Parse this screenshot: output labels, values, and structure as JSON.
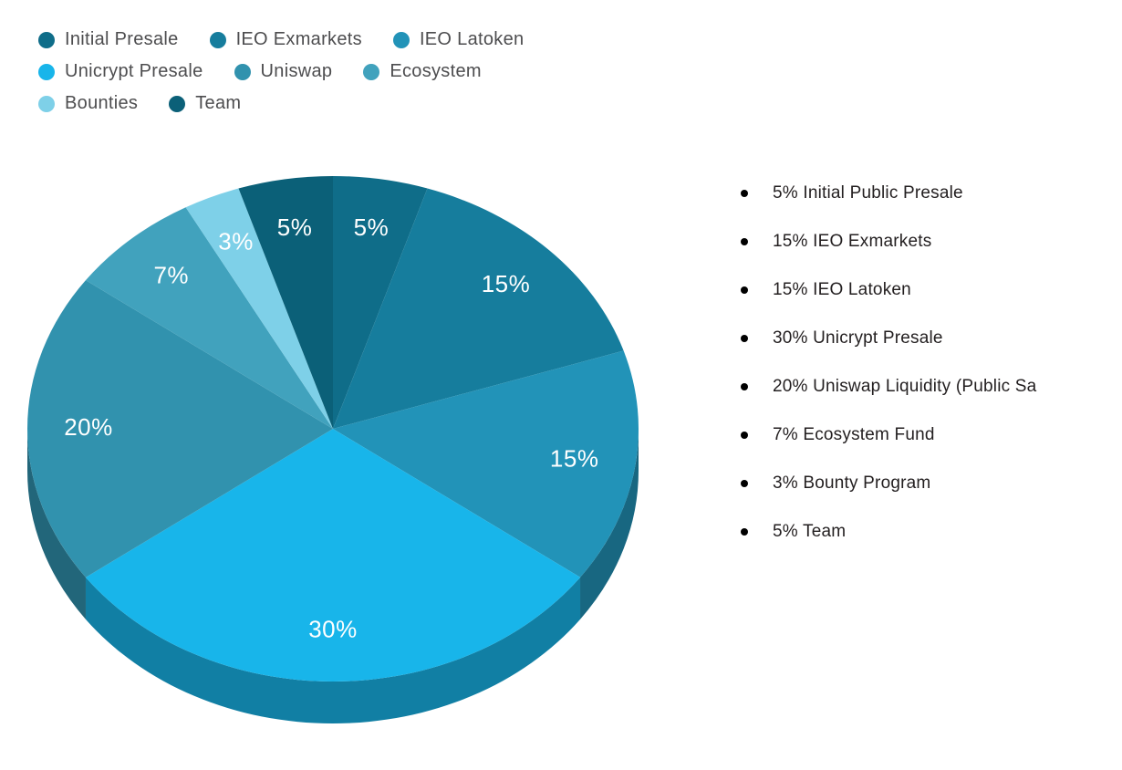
{
  "page": {
    "background": "#ffffff"
  },
  "chart_data": {
    "type": "pie",
    "title": "",
    "labels": [
      "Initial Presale",
      "IEO Exmarkets",
      "IEO Latoken",
      "Unicrypt Presale",
      "Uniswap",
      "Ecosystem",
      "Bounties",
      "Team"
    ],
    "values": [
      5,
      15,
      15,
      30,
      20,
      7,
      3,
      5
    ],
    "slice_labels": [
      "5%",
      "15%",
      "15%",
      "30%",
      "20%",
      "7%",
      "3%",
      "5%"
    ],
    "colors": [
      "#0f6d89",
      "#167d9d",
      "#2293b8",
      "#18b5ea",
      "#3192ae",
      "#41a2bd",
      "#7ed0e8",
      "#0b6078"
    ],
    "label_color": "#ffffff",
    "start_angle_deg": 0,
    "direction": "clockwise",
    "style": "3d",
    "legend_position": "top-left",
    "legend_rows": [
      [
        0,
        1,
        2
      ],
      [
        3,
        4,
        5
      ],
      [
        6,
        7
      ]
    ],
    "legend_text_color": "#4d4d4f"
  },
  "breakdown": {
    "bullet_color": "#000000",
    "items": [
      "5% Initial Public Presale",
      "15% IEO Exmarkets",
      "15% IEO Latoken",
      "30% Unicrypt Presale",
      "20% Uniswap Liquidity (Public Sa",
      "7% Ecosystem Fund",
      "3% Bounty Program",
      "5% Team"
    ]
  }
}
